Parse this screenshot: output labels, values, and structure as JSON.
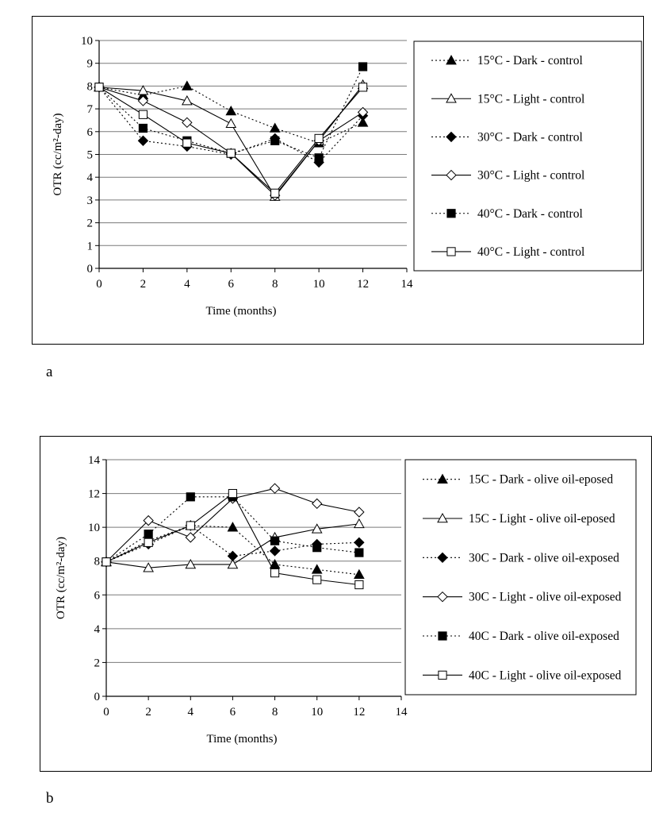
{
  "chart_data": [
    {
      "type": "line",
      "panel_label": "a",
      "xlabel": "Time (months)",
      "ylabel": "OTR (cc/m²-day)",
      "xlim": [
        0,
        14
      ],
      "ylim": [
        0,
        10
      ],
      "xticks": [
        0,
        2,
        4,
        6,
        8,
        10,
        12,
        14
      ],
      "yticks": [
        0,
        1,
        2,
        3,
        4,
        5,
        6,
        7,
        8,
        9,
        10
      ],
      "grid": "horizontal",
      "legend_position": "right",
      "x": [
        0,
        2,
        4,
        6,
        8,
        10,
        12
      ],
      "series": [
        {
          "name": "15°C - Dark - control",
          "values": [
            7.95,
            7.6,
            8.0,
            6.9,
            6.15,
            5.5,
            6.4
          ],
          "marker": "triangle",
          "filled": true,
          "line": "dotted"
        },
        {
          "name": "15°C - Light - control",
          "values": [
            7.95,
            7.8,
            7.35,
            6.35,
            3.15,
            5.6,
            8.05
          ],
          "marker": "triangle",
          "filled": false,
          "line": "solid"
        },
        {
          "name": "30°C - Dark - control",
          "values": [
            7.95,
            5.6,
            5.35,
            5.0,
            5.7,
            4.65,
            6.7
          ],
          "marker": "diamond",
          "filled": true,
          "line": "dotted"
        },
        {
          "name": "30°C - Light - control",
          "values": [
            7.95,
            7.35,
            6.4,
            5.05,
            3.2,
            5.6,
            6.85
          ],
          "marker": "diamond",
          "filled": false,
          "line": "solid"
        },
        {
          "name": "40°C - Dark - control",
          "values": [
            7.95,
            6.15,
            5.6,
            5.05,
            5.6,
            4.85,
            8.85
          ],
          "marker": "square",
          "filled": true,
          "line": "dotted"
        },
        {
          "name": "40°C - Light - control",
          "values": [
            7.95,
            6.75,
            5.5,
            5.05,
            3.3,
            5.7,
            7.95
          ],
          "marker": "square",
          "filled": false,
          "line": "solid"
        }
      ]
    },
    {
      "type": "line",
      "panel_label": "b",
      "xlabel": "Time (months)",
      "ylabel": "OTR (cc/m²-day)",
      "xlim": [
        0,
        14
      ],
      "ylim": [
        0,
        14
      ],
      "xticks": [
        0,
        2,
        4,
        6,
        8,
        10,
        12,
        14
      ],
      "yticks": [
        0,
        2,
        4,
        6,
        8,
        10,
        12,
        14
      ],
      "grid": "horizontal",
      "legend_position": "right",
      "x": [
        0,
        2,
        4,
        6,
        8,
        10,
        12
      ],
      "series": [
        {
          "name": "15C - Dark - olive oil-eposed",
          "values": [
            7.95,
            9.2,
            10.1,
            10.0,
            7.8,
            7.5,
            7.2
          ],
          "marker": "triangle",
          "filled": true,
          "line": "dotted"
        },
        {
          "name": "15C - Light - olive oil-eposed",
          "values": [
            7.95,
            7.6,
            7.8,
            7.8,
            9.4,
            9.9,
            10.2
          ],
          "marker": "triangle",
          "filled": false,
          "line": "solid"
        },
        {
          "name": "30C - Dark - olive oil-exposed",
          "values": [
            7.95,
            9.0,
            10.1,
            8.3,
            8.6,
            9.0,
            9.1
          ],
          "marker": "diamond",
          "filled": true,
          "line": "dotted"
        },
        {
          "name": "30C - Light - olive oil-exposed",
          "values": [
            7.95,
            10.4,
            9.4,
            11.7,
            12.3,
            11.4,
            10.9
          ],
          "marker": "diamond",
          "filled": false,
          "line": "solid"
        },
        {
          "name": "40C - Dark - olive oil-exposed",
          "values": [
            7.95,
            9.6,
            11.8,
            11.8,
            9.2,
            8.8,
            8.5
          ],
          "marker": "square",
          "filled": true,
          "line": "dotted"
        },
        {
          "name": "40C - Light - olive oil-exposed",
          "values": [
            7.95,
            9.1,
            10.1,
            12.0,
            7.3,
            6.9,
            6.6
          ],
          "marker": "square",
          "filled": false,
          "line": "solid"
        }
      ]
    }
  ]
}
